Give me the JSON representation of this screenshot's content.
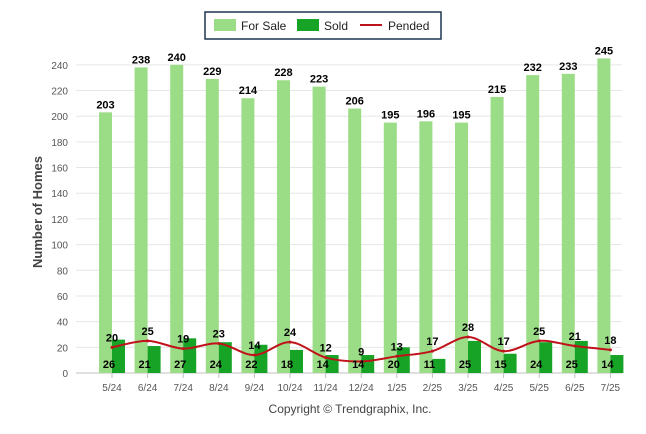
{
  "chart_data": {
    "type": "bar",
    "categories": [
      "5/24",
      "6/24",
      "7/24",
      "8/24",
      "9/24",
      "10/24",
      "11/24",
      "12/24",
      "1/25",
      "2/25",
      "3/25",
      "4/25",
      "5/25",
      "6/25",
      "7/25"
    ],
    "series": [
      {
        "name": "For Sale",
        "kind": "bar",
        "color": "#9bdc86",
        "values": [
          203,
          238,
          240,
          229,
          214,
          228,
          223,
          206,
          195,
          196,
          195,
          215,
          232,
          233,
          245
        ]
      },
      {
        "name": "Sold",
        "kind": "bar",
        "color": "#17a325",
        "values": [
          26,
          21,
          27,
          24,
          22,
          18,
          14,
          14,
          20,
          11,
          25,
          15,
          24,
          25,
          14
        ]
      },
      {
        "name": "Pended",
        "kind": "line",
        "color": "#c0121b",
        "values": [
          20,
          25,
          19,
          23,
          14,
          24,
          12,
          9,
          13,
          17,
          28,
          17,
          25,
          21,
          18
        ]
      }
    ],
    "ylabel": "Number of Homes",
    "xlabel": "",
    "ylim": [
      0,
      250
    ],
    "yticks": [
      0,
      20,
      40,
      60,
      80,
      100,
      120,
      140,
      160,
      180,
      200,
      220,
      240
    ],
    "grid": true,
    "legend_position": "top-center"
  },
  "footer": {
    "copyright": "Copyright © Trendgraphix, Inc."
  }
}
